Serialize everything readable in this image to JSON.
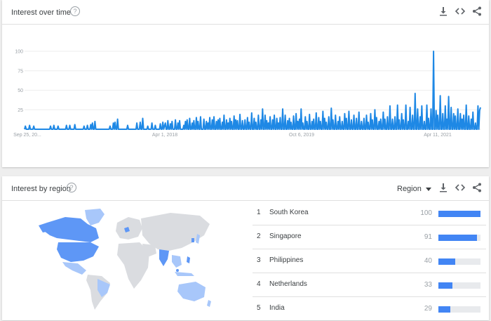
{
  "interest_over_time": {
    "title": "Interest over time",
    "help_icon": "help-circle-icon",
    "actions": [
      "download-icon",
      "embed-icon",
      "share-icon"
    ]
  },
  "interest_by_region": {
    "title": "Interest by region",
    "help_icon": "help-circle-icon",
    "region_select": "Region",
    "actions": [
      "download-icon",
      "embed-icon",
      "share-icon"
    ],
    "rows": [
      {
        "rank": "1",
        "name": "South Korea",
        "value": "100",
        "fraction": 1.0
      },
      {
        "rank": "2",
        "name": "Singapore",
        "value": "91",
        "fraction": 0.91
      },
      {
        "rank": "3",
        "name": "Philippines",
        "value": "40",
        "fraction": 0.4
      },
      {
        "rank": "4",
        "name": "Netherlands",
        "value": "33",
        "fraction": 0.33
      },
      {
        "rank": "5",
        "name": "India",
        "value": "29",
        "fraction": 0.29
      }
    ]
  },
  "colors": {
    "line": "#1e88e5",
    "bar": "#4285f4",
    "map_high": "#5e97f6",
    "map_low": "#a8c7fa",
    "map_none": "#dadce0"
  },
  "chart_data": {
    "type": "line",
    "title": "",
    "ylim": [
      0,
      100
    ],
    "y_ticks": [
      "100",
      "75",
      "50",
      "25"
    ],
    "x_ticks": [
      "Sep 25, 20...",
      "Apr 1, 2018",
      "Oct 6, 2019",
      "Apr 11, 2021"
    ],
    "series": [
      {
        "values": [
          0,
          4,
          0,
          0,
          0,
          0,
          5,
          0,
          0,
          0,
          0,
          4,
          0,
          0,
          0,
          0,
          0,
          0,
          0,
          0,
          0,
          0,
          0,
          0,
          0,
          0,
          0,
          0,
          0,
          0,
          0,
          4,
          0,
          0,
          0,
          5,
          0,
          0,
          0,
          0,
          4,
          0,
          0,
          0,
          0,
          0,
          0,
          0,
          0,
          0,
          5,
          0,
          0,
          0,
          5,
          0,
          0,
          0,
          0,
          0,
          6,
          0,
          0,
          0,
          0,
          0,
          0,
          0,
          0,
          0,
          0,
          4,
          0,
          0,
          0,
          5,
          0,
          0,
          0,
          6,
          0,
          8,
          0,
          0,
          10,
          0,
          0,
          0,
          0,
          0,
          0,
          0,
          0,
          0,
          0,
          0,
          0,
          0,
          0,
          0,
          0,
          0,
          4,
          0,
          0,
          0,
          8,
          0,
          9,
          0,
          0,
          13,
          0,
          0,
          0,
          0,
          0,
          0,
          0,
          0,
          0,
          0,
          0,
          5,
          0,
          0,
          0,
          0,
          0,
          0,
          0,
          0,
          0,
          0,
          8,
          0,
          0,
          0,
          9,
          0,
          0,
          14,
          0,
          0,
          0,
          0,
          0,
          4,
          0,
          0,
          0,
          0,
          8,
          0,
          0,
          0,
          5,
          0,
          0,
          0,
          0,
          0,
          7,
          0,
          0,
          9,
          0,
          4,
          8,
          0,
          0,
          11,
          0,
          0,
          7,
          0,
          10,
          0,
          0,
          0,
          12,
          0,
          0,
          8,
          0,
          11,
          0,
          0,
          0,
          0,
          5,
          0,
          10,
          0,
          12,
          0,
          0,
          14,
          0,
          0,
          8,
          0,
          11,
          0,
          0,
          15,
          0,
          10,
          0,
          0,
          16,
          0,
          0,
          0,
          13,
          0,
          0,
          10,
          0,
          8,
          0,
          15,
          0,
          0,
          12,
          0,
          16,
          0,
          0,
          10,
          0,
          12,
          0,
          14,
          0,
          0,
          9,
          0,
          18,
          0,
          0,
          12,
          0,
          8,
          0,
          14,
          0,
          10,
          0,
          0,
          17,
          0,
          12,
          0,
          11,
          0,
          0,
          19,
          0,
          0,
          11,
          0,
          0,
          12,
          0,
          0,
          15,
          0,
          9,
          0,
          0,
          21,
          0,
          0,
          14,
          0,
          9,
          0,
          0,
          18,
          0,
          0,
          12,
          0,
          26,
          0,
          0,
          18,
          0,
          11,
          0,
          8,
          0,
          16,
          0,
          0,
          12,
          0,
          18,
          0,
          0,
          14,
          0,
          8,
          0,
          15,
          0,
          0,
          26,
          0,
          0,
          18,
          0,
          0,
          11,
          0,
          14,
          0,
          9,
          0,
          0,
          17,
          0,
          0,
          20,
          0,
          10,
          0,
          13,
          0,
          26,
          0,
          8,
          0,
          0,
          16,
          0,
          10,
          0,
          0,
          19,
          0,
          0,
          10,
          0,
          13,
          0,
          0,
          21,
          0,
          0,
          15,
          0,
          10,
          0,
          0,
          23,
          0,
          14,
          0,
          9,
          0,
          0,
          16,
          0,
          0,
          27,
          0,
          12,
          0,
          0,
          18,
          0,
          0,
          10,
          0,
          16,
          0,
          0,
          10,
          0,
          0,
          20,
          0,
          14,
          0,
          0,
          23,
          0,
          0,
          12,
          0,
          0,
          18,
          0,
          0,
          14,
          0,
          0,
          22,
          0,
          0,
          10,
          0,
          0,
          14,
          0,
          0,
          18,
          0,
          9,
          0,
          0,
          20,
          0,
          12,
          0,
          0,
          25,
          0,
          15,
          0,
          0,
          10,
          0,
          13,
          0,
          0,
          22,
          0,
          13,
          0,
          0,
          16,
          0,
          0,
          30,
          0,
          0,
          13,
          0,
          0,
          16,
          0,
          0,
          31,
          0,
          12,
          0,
          0,
          20,
          0,
          12,
          0,
          0,
          31,
          0,
          0,
          10,
          0,
          28,
          0,
          0,
          18,
          0,
          0,
          46,
          0,
          0,
          26,
          0,
          0,
          16,
          0,
          30,
          0,
          0,
          10,
          0,
          0,
          31,
          0,
          14,
          0,
          0,
          26,
          0,
          0,
          100,
          0,
          0,
          24,
          0,
          18,
          0,
          0,
          43,
          0,
          0,
          20,
          0,
          0,
          30,
          0,
          13,
          0,
          42,
          0,
          0,
          28,
          0,
          0,
          20,
          0,
          17,
          0,
          0,
          26,
          0,
          0,
          20,
          0,
          13,
          0,
          18,
          0,
          0,
          31,
          0,
          0,
          17,
          0,
          0,
          13,
          0,
          22,
          0,
          0,
          8,
          0,
          0,
          30,
          0,
          24,
          28
        ]
      }
    ]
  }
}
